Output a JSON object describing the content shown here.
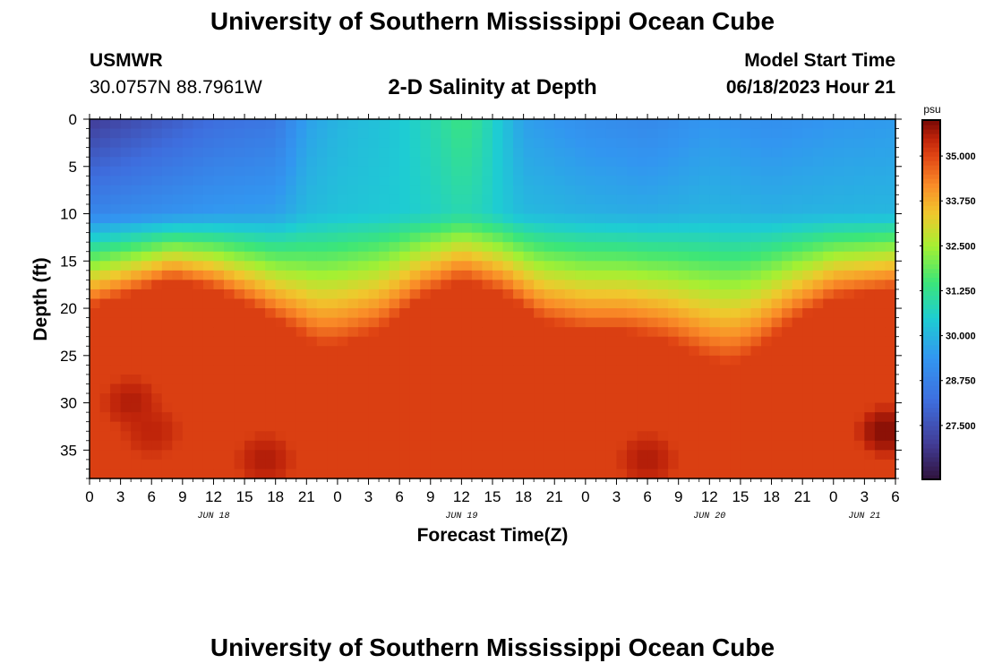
{
  "header": {
    "title": "University of Southern Mississippi Ocean Cube",
    "station_id": "USMWR",
    "coords": "30.0757N  88.7961W",
    "subtitle": "2-D Salinity at Depth",
    "model_start_label": "Model Start Time",
    "model_start_value": "06/18/2023 Hour 21",
    "bottom_title": "University of Southern Mississippi Ocean Cube"
  },
  "chart_data": {
    "type": "heatmap",
    "title": "2-D Salinity at Depth",
    "xlabel": "Forecast Time(Z)",
    "ylabel": "Depth (ft)",
    "xlim": [
      0,
      78
    ],
    "ylim": [
      0,
      38
    ],
    "x_ticks": [
      0,
      3,
      6,
      9,
      12,
      15,
      18,
      21,
      24,
      27,
      30,
      33,
      36,
      39,
      42,
      45,
      48,
      51,
      54,
      57,
      60,
      63,
      66,
      69,
      72,
      75,
      78
    ],
    "x_tick_labels": [
      "0",
      "3",
      "6",
      "9",
      "12",
      "15",
      "18",
      "21",
      "0",
      "3",
      "6",
      "9",
      "12",
      "15",
      "18",
      "21",
      "0",
      "3",
      "6",
      "9",
      "12",
      "15",
      "18",
      "21",
      "0",
      "3",
      "6"
    ],
    "date_labels": [
      {
        "x": 12,
        "label": "JUN 18"
      },
      {
        "x": 36,
        "label": "JUN 19"
      },
      {
        "x": 60,
        "label": "JUN 20"
      },
      {
        "x": 75,
        "label": "JUN 21"
      }
    ],
    "y_ticks": [
      0,
      5,
      10,
      15,
      20,
      25,
      30,
      35
    ],
    "y_tick_labels": [
      "0",
      "5",
      "10",
      "15",
      "20",
      "25",
      "30",
      "35"
    ],
    "grid_resolution": {
      "dx_hours": 1,
      "dz_ft": 1
    },
    "halocline_depth_ft": [
      [
        0,
        17
      ],
      [
        4,
        15.5
      ],
      [
        8,
        14
      ],
      [
        12,
        15
      ],
      [
        16,
        17
      ],
      [
        20,
        19.5
      ],
      [
        22,
        21
      ],
      [
        24,
        21
      ],
      [
        28,
        19.5
      ],
      [
        32,
        16
      ],
      [
        36,
        14
      ],
      [
        40,
        15.5
      ],
      [
        44,
        18.5
      ],
      [
        48,
        19.5
      ],
      [
        52,
        19.5
      ],
      [
        56,
        20.5
      ],
      [
        60,
        22.5
      ],
      [
        62,
        23
      ],
      [
        64,
        22
      ],
      [
        68,
        18.5
      ],
      [
        72,
        16
      ],
      [
        78,
        15
      ]
    ],
    "surface_salinity_psu": [
      [
        0,
        27.0
      ],
      [
        6,
        27.6
      ],
      [
        12,
        28.2
      ],
      [
        18,
        28.5
      ],
      [
        21,
        29.6
      ],
      [
        24,
        30.0
      ],
      [
        30,
        30.4
      ],
      [
        34,
        31.0
      ],
      [
        36,
        31.4
      ],
      [
        38,
        31.0
      ],
      [
        42,
        29.6
      ],
      [
        48,
        29.2
      ],
      [
        54,
        29.0
      ],
      [
        60,
        29.4
      ],
      [
        66,
        29.2
      ],
      [
        72,
        29.4
      ],
      [
        78,
        29.5
      ]
    ],
    "surface_layer_depth_ft": 10,
    "bottom_layer_psu": 35.1,
    "notable_cells": [
      {
        "x": 4,
        "z": 30,
        "psu": 35.6
      },
      {
        "x": 6,
        "z": 33,
        "psu": 35.5
      },
      {
        "x": 17,
        "z": 36,
        "psu": 35.6
      },
      {
        "x": 54,
        "z": 36,
        "psu": 35.6
      },
      {
        "x": 77,
        "z": 33,
        "psu": 35.9
      }
    ],
    "colorbar": {
      "unit": "psu",
      "min": 26.0,
      "max": 36.0,
      "ticks": [
        35.0,
        33.75,
        32.5,
        31.25,
        30.0,
        28.75,
        27.5
      ],
      "tick_labels": [
        "35.000",
        "33.750",
        "32.500",
        "31.250",
        "30.000",
        "28.750",
        "27.500"
      ]
    }
  }
}
